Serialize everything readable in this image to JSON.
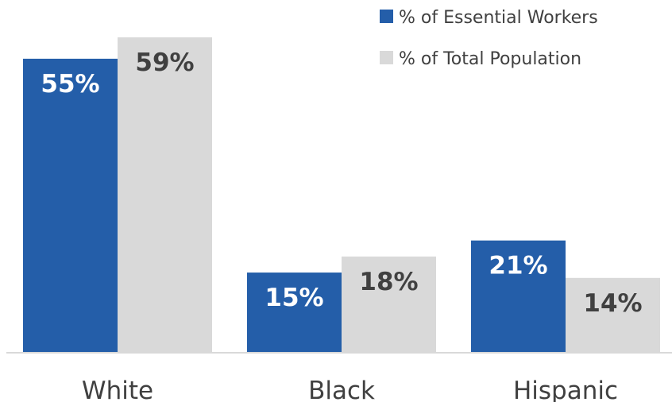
{
  "chart_data": {
    "type": "bar",
    "categories": [
      "White",
      "Black",
      "Hispanic"
    ],
    "series": [
      {
        "name": "% of Essential Workers",
        "color": "#245EA9",
        "label_color": "#ffffff",
        "values": [
          55,
          15,
          21
        ],
        "labels": [
          "55%",
          "15%",
          "21%"
        ]
      },
      {
        "name": "% of Total Population",
        "color": "#D9D9D9",
        "label_color": "#404040",
        "values": [
          59,
          18,
          14
        ],
        "labels": [
          "59%",
          "18%",
          "14%"
        ]
      }
    ],
    "ylim": [
      0,
      59
    ],
    "grid": false,
    "legend": "top-right",
    "axis_color": "#D9D9D9"
  }
}
